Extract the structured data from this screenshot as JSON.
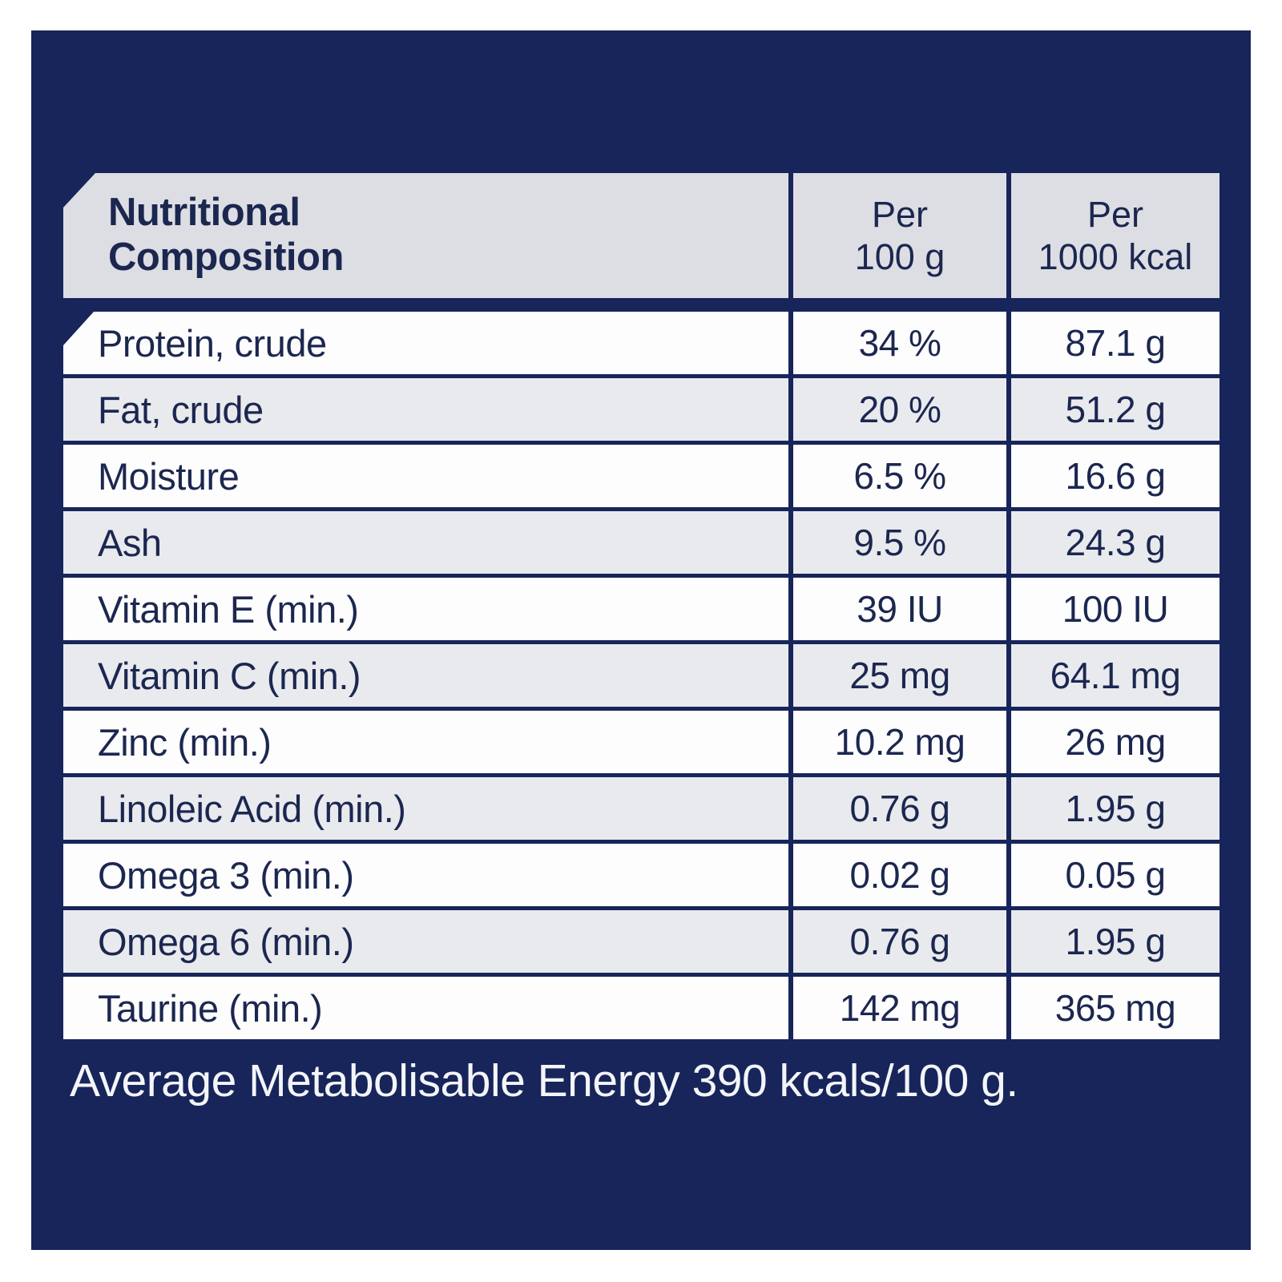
{
  "colors": {
    "panel_navy": "#17255b",
    "header_gray": "#dcdee3",
    "row_white": "#fdfdfd",
    "row_gray": "#e8eaee",
    "text_navy": "#1c2750",
    "footer_text": "#f3f5f8"
  },
  "table": {
    "title": {
      "line1": "Nutritional",
      "line2": "Composition"
    },
    "columns": [
      {
        "line1": "Per",
        "line2": "100 g"
      },
      {
        "line1": "Per",
        "line2": "1000 kcal"
      }
    ],
    "rows": [
      {
        "label": "Protein, crude",
        "per100": "34 %",
        "per1000": "87.1 g"
      },
      {
        "label": "Fat, crude",
        "per100": "20 %",
        "per1000": "51.2 g"
      },
      {
        "label": "Moisture",
        "per100": "6.5 %",
        "per1000": "16.6 g"
      },
      {
        "label": "Ash",
        "per100": "9.5 %",
        "per1000": "24.3 g"
      },
      {
        "label": "Vitamin E (min.)",
        "per100": "39 IU",
        "per1000": "100 IU"
      },
      {
        "label": "Vitamin C (min.)",
        "per100": "25 mg",
        "per1000": "64.1 mg"
      },
      {
        "label": "Zinc (min.)",
        "per100": "10.2 mg",
        "per1000": "26 mg"
      },
      {
        "label": "Linoleic Acid (min.)",
        "per100": "0.76 g",
        "per1000": "1.95 g"
      },
      {
        "label": "Omega 3 (min.)",
        "per100": "0.02 g",
        "per1000": "0.05 g"
      },
      {
        "label": "Omega 6 (min.)",
        "per100": "0.76 g",
        "per1000": "1.95 g"
      },
      {
        "label": "Taurine (min.)",
        "per100": "142 mg",
        "per1000": "365 mg"
      }
    ],
    "footer": "Average Metabolisable Energy 390 kcals/100 g."
  }
}
